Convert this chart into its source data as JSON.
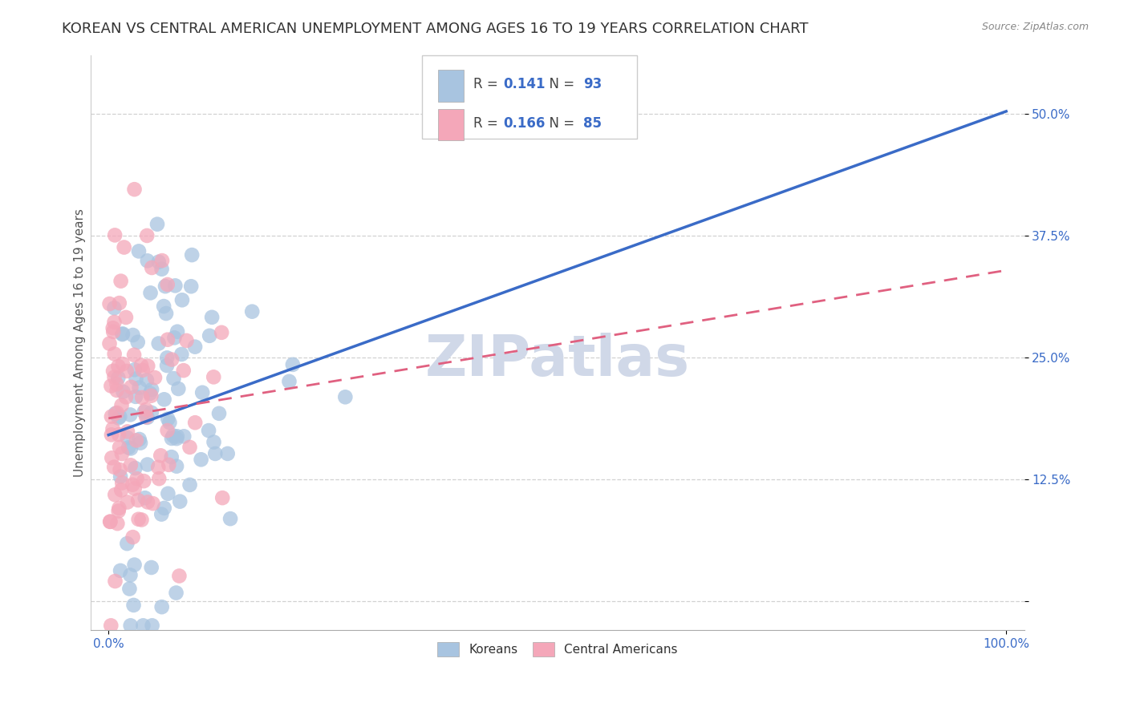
{
  "title": "KOREAN VS CENTRAL AMERICAN UNEMPLOYMENT AMONG AGES 16 TO 19 YEARS CORRELATION CHART",
  "source": "Source: ZipAtlas.com",
  "ylabel": "Unemployment Among Ages 16 to 19 years",
  "xlabel": "",
  "xlim": [
    -0.02,
    1.02
  ],
  "ylim": [
    -0.03,
    0.56
  ],
  "yticks": [
    0.0,
    0.125,
    0.25,
    0.375,
    0.5
  ],
  "yticklabels": [
    "",
    "12.5%",
    "25.0%",
    "37.5%",
    "50.0%"
  ],
  "xticks": [
    0.0,
    1.0
  ],
  "xticklabels": [
    "0.0%",
    "100.0%"
  ],
  "korean_color": "#a8c4e0",
  "central_color": "#f4a7b9",
  "korean_line_color": "#3a6bc7",
  "central_line_color": "#e06080",
  "korean_R": 0.141,
  "korean_N": 93,
  "central_R": 0.166,
  "central_N": 85,
  "korean_seed": 42,
  "central_seed": 99,
  "background_color": "#ffffff",
  "grid_color": "#cccccc",
  "title_fontsize": 13,
  "axis_label_fontsize": 11,
  "tick_fontsize": 11,
  "legend_fontsize": 12,
  "watermark_text": "ZIPatlas",
  "watermark_color": "#d0d8e8",
  "watermark_fontsize": 52
}
